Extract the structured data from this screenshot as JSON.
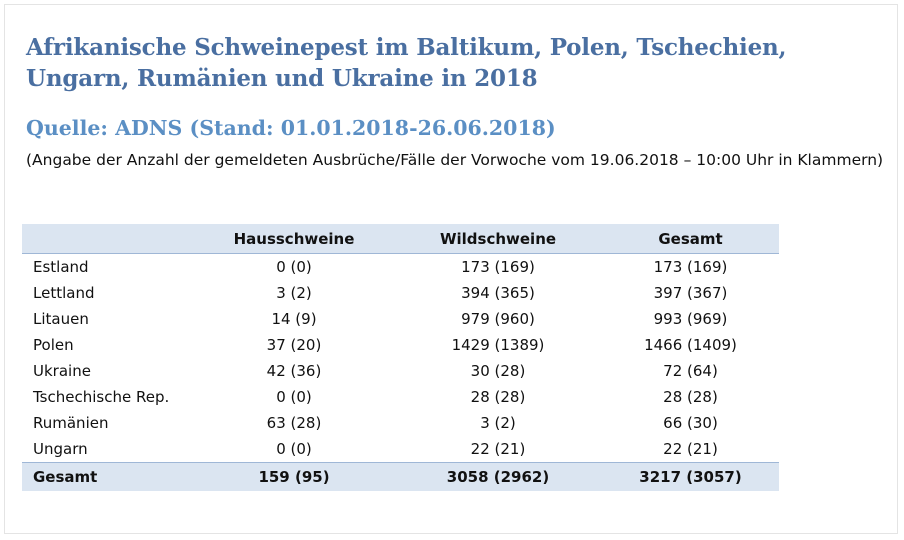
{
  "title": "Afrikanische Schweinepest im Baltikum, Polen, Tschechien, Ungarn, Rumänien und Ukraine in 2018",
  "source": "Quelle: ADNS (Stand:  01.01.2018-26.06.2018)",
  "note": "(Angabe der Anzahl der gemeldeten Ausbrüche/Fälle der Vorwoche vom 19.06.2018 – 10:00 Uhr in Klammern)",
  "colors": {
    "title": "#4a6fa1",
    "source": "#5b8fc4",
    "header_bg": "#dbe5f1"
  },
  "table": {
    "headers": [
      "",
      "Hausschweine",
      "Wildschweine",
      "Gesamt"
    ],
    "rows": [
      {
        "country": "Estland",
        "haus": "0 (0)",
        "wild": "173 (169)",
        "gesamt": "173 (169)"
      },
      {
        "country": "Lettland",
        "haus": "3 (2)",
        "wild": "394 (365)",
        "gesamt": "397 (367)"
      },
      {
        "country": "Litauen",
        "haus": "14 (9)",
        "wild": "979 (960)",
        "gesamt": "993 (969)"
      },
      {
        "country": "Polen",
        "haus": "37 (20)",
        "wild": "1429 (1389)",
        "gesamt": "1466 (1409)"
      },
      {
        "country": "Ukraine",
        "haus": "42 (36)",
        "wild": "30 (28)",
        "gesamt": "72 (64)"
      },
      {
        "country": "Tschechische Rep.",
        "haus": "0 (0)",
        "wild": "28 (28)",
        "gesamt": "28 (28)"
      },
      {
        "country": "Rumänien",
        "haus": "63 (28)",
        "wild": "3 (2)",
        "gesamt": "66 (30)"
      },
      {
        "country": "Ungarn",
        "haus": "0 (0)",
        "wild": "22 (21)",
        "gesamt": "22 (21)"
      }
    ],
    "total": {
      "country": "Gesamt",
      "haus": "159 (95)",
      "wild": "3058 (2962)",
      "gesamt": "3217 (3057)"
    }
  }
}
